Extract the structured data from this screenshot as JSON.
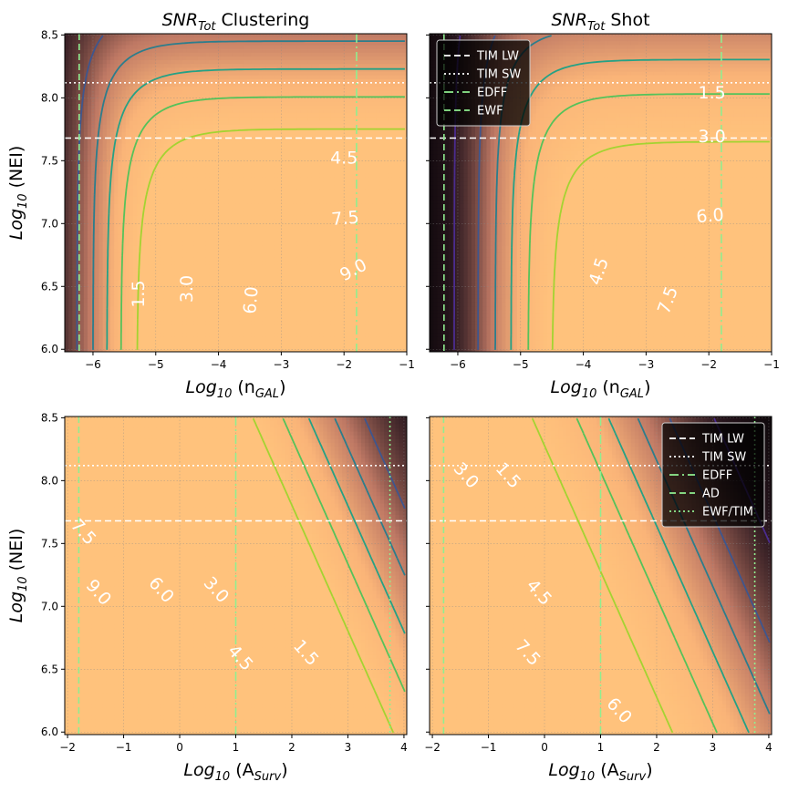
{
  "figure": {
    "colors": {
      "background_dark": "#000000",
      "heat_bright": "#ffc27c",
      "contour_palette": [
        "#4b2c8f",
        "#3e568e",
        "#2c7d8c",
        "#25a185",
        "#55c25a",
        "#a4d331"
      ],
      "line_tim": "#ffffff",
      "line_survey": "#90ee90"
    }
  },
  "chart_data": [
    {
      "type": "heatmap",
      "panel": "top-left",
      "title": "SNR_Tot Clustering",
      "title_main": "SNR",
      "title_sub": "Tot",
      "title_rest": " Clustering",
      "xlabel": "Log10 (nGAL)",
      "xlabel_main": "Log",
      "xlabel_sub": "10",
      "xlabel_rest": " (n",
      "xlabel_sub2": "GAL",
      "xlabel_end": ")",
      "ylabel": "Log10 (NEI)",
      "ylabel_main": "Log",
      "ylabel_sub": "10",
      "ylabel_rest": " (NEI)",
      "xlim": [
        -6.45,
        -1.0
      ],
      "ylim": [
        5.98,
        8.51
      ],
      "xticks": [
        -6,
        -5,
        -4,
        -3,
        -2,
        -1
      ],
      "xtick_labels": [
        "−6",
        "−5",
        "−4",
        "−3",
        "−2",
        "−1"
      ],
      "yticks": [
        6.0,
        6.5,
        7.0,
        7.5,
        8.0,
        8.5
      ],
      "ytick_labels": [
        "6.0",
        "6.5",
        "7.0",
        "7.5",
        "8.0",
        "8.5"
      ],
      "show_xticklabels": true,
      "show_yticklabels": true,
      "show_ylabel": true,
      "grid": true,
      "model": "clustering",
      "contour_levels": [
        1.5,
        3.0,
        4.5,
        6.0,
        7.5,
        9.0
      ],
      "contour_labels": [
        {
          "text": "1.5",
          "x": -5.27,
          "y": 6.44,
          "angle": -90
        },
        {
          "text": "3.0",
          "x": -4.5,
          "y": 6.48,
          "angle": -90
        },
        {
          "text": "6.0",
          "x": -3.48,
          "y": 6.39,
          "angle": -85
        },
        {
          "text": "4.5",
          "x": -2.0,
          "y": 7.52,
          "angle": 0
        },
        {
          "text": "7.5",
          "x": -1.98,
          "y": 7.04,
          "angle": -5
        },
        {
          "text": "9.0",
          "x": -1.85,
          "y": 6.63,
          "angle": -28
        }
      ],
      "hlines": [
        {
          "y": 8.12,
          "style": "dotted",
          "color": "#ffffff"
        },
        {
          "y": 7.68,
          "style": "dashed",
          "color": "#ffffff"
        }
      ],
      "vlines": [
        {
          "x": -6.22,
          "style": "dashed",
          "color": "#90ee90"
        },
        {
          "x": -1.8,
          "style": "dashdot",
          "color": "#90ee90"
        }
      ],
      "legend": null
    },
    {
      "type": "heatmap",
      "panel": "top-right",
      "title": "SNR_Tot Shot",
      "title_main": "SNR",
      "title_sub": "Tot",
      "title_rest": " Shot",
      "xlabel": "Log10 (nGAL)",
      "xlabel_main": "Log",
      "xlabel_sub": "10",
      "xlabel_rest": " (n",
      "xlabel_sub2": "GAL",
      "xlabel_end": ")",
      "ylabel": "",
      "xlim": [
        -6.45,
        -1.0
      ],
      "ylim": [
        5.98,
        8.51
      ],
      "xticks": [
        -6,
        -5,
        -4,
        -3,
        -2,
        -1
      ],
      "xtick_labels": [
        "−6",
        "−5",
        "−4",
        "−3",
        "−2",
        "−1"
      ],
      "yticks": [
        6.0,
        6.5,
        7.0,
        7.5,
        8.0,
        8.5
      ],
      "ytick_labels": [
        "",
        "",
        "",
        "",
        "",
        ""
      ],
      "show_xticklabels": true,
      "show_yticklabels": false,
      "show_ylabel": false,
      "grid": true,
      "model": "shot",
      "contour_levels": [
        1.5,
        3.0,
        4.5,
        6.0,
        7.5,
        9.0
      ],
      "contour_labels": [
        {
          "text": "1.5",
          "x": -1.95,
          "y": 8.04,
          "angle": 0
        },
        {
          "text": "3.0",
          "x": -1.95,
          "y": 7.69,
          "angle": 0
        },
        {
          "text": "4.5",
          "x": -3.75,
          "y": 6.62,
          "angle": -72
        },
        {
          "text": "6.0",
          "x": -1.98,
          "y": 7.06,
          "angle": -5
        },
        {
          "text": "7.5",
          "x": -2.65,
          "y": 6.39,
          "angle": -70
        }
      ],
      "hlines": [
        {
          "y": 8.12,
          "style": "dotted",
          "color": "#ffffff"
        },
        {
          "y": 7.68,
          "style": "dashed",
          "color": "#ffffff"
        }
      ],
      "vlines": [
        {
          "x": -6.22,
          "style": "dashed",
          "color": "#90ee90"
        },
        {
          "x": -1.8,
          "style": "dashdot",
          "color": "#90ee90"
        }
      ],
      "legend": {
        "placement": "top-left",
        "entries": [
          {
            "label": "TIM LW",
            "style": "dashed",
            "color": "#ffffff"
          },
          {
            "label": "TIM SW",
            "style": "dotted",
            "color": "#ffffff"
          },
          {
            "label": "EDFF",
            "style": "dashdot",
            "color": "#90ee90"
          },
          {
            "label": "EWF",
            "style": "dashed",
            "color": "#90ee90"
          }
        ]
      }
    },
    {
      "type": "heatmap",
      "panel": "bottom-left",
      "title": "",
      "xlabel": "Log10 (ASurv)",
      "xlabel_main": "Log",
      "xlabel_sub": "10",
      "xlabel_rest": " (A",
      "xlabel_sub2": "Surv",
      "xlabel_end": ")",
      "ylabel": "Log10 (NEI)",
      "ylabel_main": "Log",
      "ylabel_sub": "10",
      "ylabel_rest": " (NEI)",
      "xlim": [
        -2.05,
        4.05
      ],
      "ylim": [
        5.98,
        8.51
      ],
      "xticks": [
        -2,
        -1,
        0,
        1,
        2,
        3,
        4
      ],
      "xtick_labels": [
        "−2",
        "−1",
        "0",
        "1",
        "2",
        "3",
        "4"
      ],
      "yticks": [
        6.0,
        6.5,
        7.0,
        7.5,
        8.0,
        8.5
      ],
      "ytick_labels": [
        "6.0",
        "6.5",
        "7.0",
        "7.5",
        "8.0",
        "8.5"
      ],
      "show_xticklabels": true,
      "show_yticklabels": true,
      "show_ylabel": true,
      "grid": true,
      "model": "area_clustering",
      "contour_levels": [
        1.5,
        3.0,
        4.5,
        6.0,
        7.5,
        9.0
      ],
      "contour_labels": [
        {
          "text": "1.5",
          "x": 2.25,
          "y": 6.63,
          "angle": 48
        },
        {
          "text": "3.0",
          "x": 0.65,
          "y": 7.13,
          "angle": 48
        },
        {
          "text": "4.5",
          "x": 1.08,
          "y": 6.59,
          "angle": 48
        },
        {
          "text": "6.0",
          "x": -0.33,
          "y": 7.13,
          "angle": 48
        },
        {
          "text": "7.5",
          "x": -1.72,
          "y": 7.59,
          "angle": 48
        },
        {
          "text": "9.0",
          "x": -1.45,
          "y": 7.11,
          "angle": 48
        }
      ],
      "hlines": [
        {
          "y": 8.12,
          "style": "dotted",
          "color": "#ffffff"
        },
        {
          "y": 7.68,
          "style": "dashed",
          "color": "#ffffff"
        }
      ],
      "vlines": [
        {
          "x": -1.8,
          "style": "dashed",
          "color": "#90ee90"
        },
        {
          "x": 1.0,
          "style": "dashdot",
          "color": "#90ee90"
        },
        {
          "x": 3.75,
          "style": "dotted",
          "color": "#90ee90"
        }
      ],
      "legend": null
    },
    {
      "type": "heatmap",
      "panel": "bottom-right",
      "title": "",
      "xlabel": "Log10 (ASurv)",
      "xlabel_main": "Log",
      "xlabel_sub": "10",
      "xlabel_rest": " (A",
      "xlabel_sub2": "Surv",
      "xlabel_end": ")",
      "ylabel": "",
      "xlim": [
        -2.05,
        4.05
      ],
      "ylim": [
        5.98,
        8.51
      ],
      "xticks": [
        -2,
        -1,
        0,
        1,
        2,
        3,
        4
      ],
      "xtick_labels": [
        "−2",
        "−1",
        "0",
        "1",
        "2",
        "3",
        "4"
      ],
      "yticks": [
        6.0,
        6.5,
        7.0,
        7.5,
        8.0,
        8.5
      ],
      "ytick_labels": [
        "",
        "",
        "",
        "",
        "",
        ""
      ],
      "show_xticklabels": true,
      "show_yticklabels": false,
      "show_ylabel": false,
      "grid": true,
      "model": "area_shot",
      "contour_levels": [
        1.5,
        3.0,
        4.5,
        6.0,
        7.5,
        9.0
      ],
      "contour_labels": [
        {
          "text": "1.5",
          "x": -0.65,
          "y": 8.04,
          "angle": 48
        },
        {
          "text": "3.0",
          "x": -1.4,
          "y": 8.04,
          "angle": 48
        },
        {
          "text": "4.5",
          "x": -0.1,
          "y": 7.11,
          "angle": 48
        },
        {
          "text": "6.0",
          "x": 1.33,
          "y": 6.17,
          "angle": 48
        },
        {
          "text": "7.5",
          "x": -0.3,
          "y": 6.63,
          "angle": 48
        }
      ],
      "hlines": [
        {
          "y": 8.12,
          "style": "dotted",
          "color": "#ffffff"
        },
        {
          "y": 7.68,
          "style": "dashed",
          "color": "#ffffff"
        }
      ],
      "vlines": [
        {
          "x": -1.8,
          "style": "dashed",
          "color": "#90ee90"
        },
        {
          "x": 1.0,
          "style": "dashdot",
          "color": "#90ee90"
        },
        {
          "x": 3.75,
          "style": "dotted",
          "color": "#90ee90"
        }
      ],
      "legend": {
        "placement": "top-right",
        "entries": [
          {
            "label": "TIM LW",
            "style": "dashed",
            "color": "#ffffff"
          },
          {
            "label": "TIM SW",
            "style": "dotted",
            "color": "#ffffff"
          },
          {
            "label": "EDFF",
            "style": "dashdot",
            "color": "#90ee90"
          },
          {
            "label": "AD",
            "style": "dashed",
            "color": "#90ee90"
          },
          {
            "label": "EWF/TIM",
            "style": "dotted",
            "color": "#90ee90"
          }
        ]
      }
    }
  ]
}
